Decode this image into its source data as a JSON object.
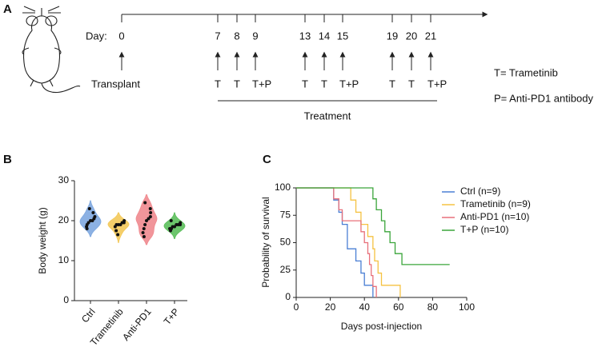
{
  "panel_a": {
    "label": "A",
    "day_label": "Day:",
    "days": [
      0,
      7,
      8,
      9,
      13,
      14,
      15,
      19,
      20,
      21
    ],
    "treatments": [
      "Transplant",
      "T",
      "T",
      "T+P",
      "T",
      "T",
      "T+P",
      "T",
      "T",
      "T+P"
    ],
    "bracket_label": "Treatment",
    "legend": [
      "T= Trametinib",
      "P= Anti-PD1 antibody"
    ]
  },
  "chart_data": [
    {
      "type": "violin",
      "panel_label": "B",
      "ylabel": "Body weight (g)",
      "categories": [
        "Ctrl",
        "Trametinib",
        "Anti-PD1",
        "T+P"
      ],
      "colors": [
        "#7fa9e0",
        "#f3c95a",
        "#f08a8f",
        "#5cbf5c"
      ],
      "values": [
        [
          18,
          18.5,
          19,
          19.5,
          20,
          20,
          20.5,
          21,
          22,
          23
        ],
        [
          16.5,
          17.5,
          18.5,
          19,
          19,
          19,
          19.5,
          19.5,
          20
        ],
        [
          16,
          17,
          18,
          19,
          20,
          20.5,
          21,
          22,
          23,
          24.5
        ],
        [
          17.5,
          18,
          18,
          18.5,
          18.5,
          19,
          19,
          19,
          19.5,
          20
        ]
      ],
      "ylim": [
        0,
        30
      ],
      "yticks": [
        0,
        10,
        20,
        30
      ]
    },
    {
      "type": "line",
      "step": true,
      "panel_label": "C",
      "xlabel": "Days post-injection",
      "ylabel": "Probability of survival",
      "xlim": [
        0,
        100
      ],
      "xticks": [
        0,
        20,
        40,
        60,
        80,
        100
      ],
      "ylim": [
        0,
        100
      ],
      "yticks": [
        0,
        25,
        50,
        75,
        100
      ],
      "legend": "upper right",
      "series": [
        {
          "name": "Ctrl (n=9)",
          "color": "#4a7fd4",
          "x": [
            0,
            22,
            25,
            27,
            30,
            35,
            38,
            40,
            45
          ],
          "values": [
            100,
            88.9,
            77.8,
            66.7,
            44.4,
            33.3,
            22.2,
            11.1,
            0
          ]
        },
        {
          "name": "Trametinib (n=9)",
          "color": "#f5c242",
          "x": [
            0,
            32,
            35,
            38,
            42,
            45,
            46,
            48,
            50,
            61
          ],
          "values": [
            100,
            88.9,
            77.8,
            66.7,
            55.6,
            44.4,
            33.3,
            22.2,
            11.1,
            0
          ]
        },
        {
          "name": "Anti-PD1 (n=10)",
          "color": "#e8707a",
          "x": [
            0,
            22,
            25,
            27,
            38,
            40,
            42,
            43,
            44,
            45,
            47
          ],
          "values": [
            100,
            90,
            80,
            70,
            60,
            50,
            40,
            30,
            20,
            10,
            0
          ]
        },
        {
          "name": "T+P (n=10)",
          "color": "#3aa53a",
          "x": [
            0,
            45,
            47,
            50,
            52,
            55,
            58,
            62,
            90
          ],
          "values": [
            100,
            90,
            80,
            70,
            60,
            50,
            40,
            30,
            30
          ]
        }
      ]
    }
  ]
}
